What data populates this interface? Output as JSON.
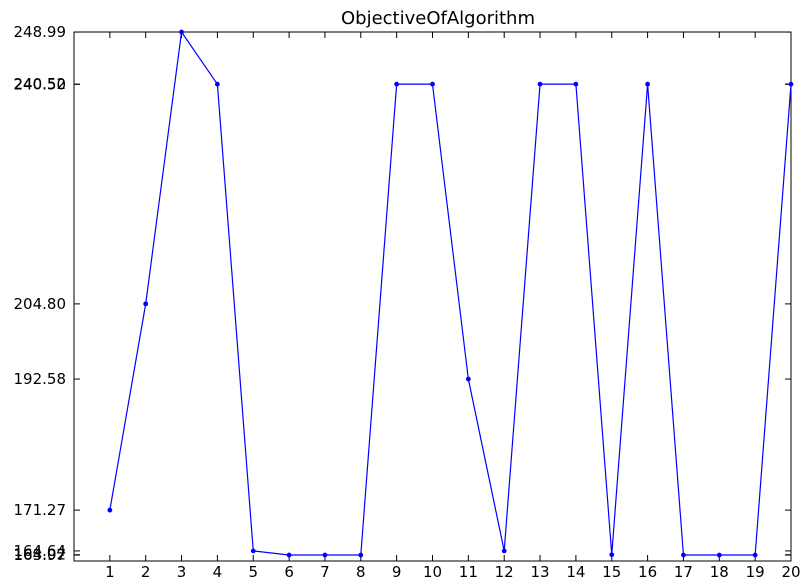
{
  "chart_data": {
    "type": "line",
    "title": "ObjectiveOfAlgorithm",
    "xlabel": "",
    "ylabel": "",
    "xlim": [
      0,
      20
    ],
    "ylim": [
      163.0,
      249.0
    ],
    "x_ticks": [
      1,
      2,
      3,
      4,
      5,
      6,
      7,
      8,
      9,
      10,
      11,
      12,
      13,
      14,
      15,
      16,
      17,
      18,
      19,
      20
    ],
    "y_ticks": [
      {
        "value": 163.97,
        "label": "163.97"
      },
      {
        "value": 164.02,
        "label": "164.02"
      },
      {
        "value": 164.64,
        "label": "164.64"
      },
      {
        "value": 171.27,
        "label": "171.27"
      },
      {
        "value": 192.58,
        "label": "192.58"
      },
      {
        "value": 204.8,
        "label": "204.80"
      },
      {
        "value": 240.5,
        "label": "240.50"
      },
      {
        "value": 240.52,
        "label": "240.52"
      },
      {
        "value": 248.99,
        "label": "248.99"
      }
    ],
    "grid": false,
    "legend": "none",
    "series": [
      {
        "color": "#0000ff",
        "x": [
          1,
          2,
          3,
          4,
          5,
          6,
          7,
          8,
          9,
          10,
          11,
          12,
          13,
          14,
          15,
          16,
          17,
          18,
          19,
          20
        ],
        "values": [
          171.27,
          204.8,
          248.99,
          240.52,
          164.64,
          163.97,
          163.97,
          163.97,
          240.52,
          240.52,
          192.58,
          164.64,
          240.52,
          240.52,
          164.02,
          240.52,
          163.97,
          163.97,
          163.97,
          240.52
        ]
      }
    ]
  }
}
